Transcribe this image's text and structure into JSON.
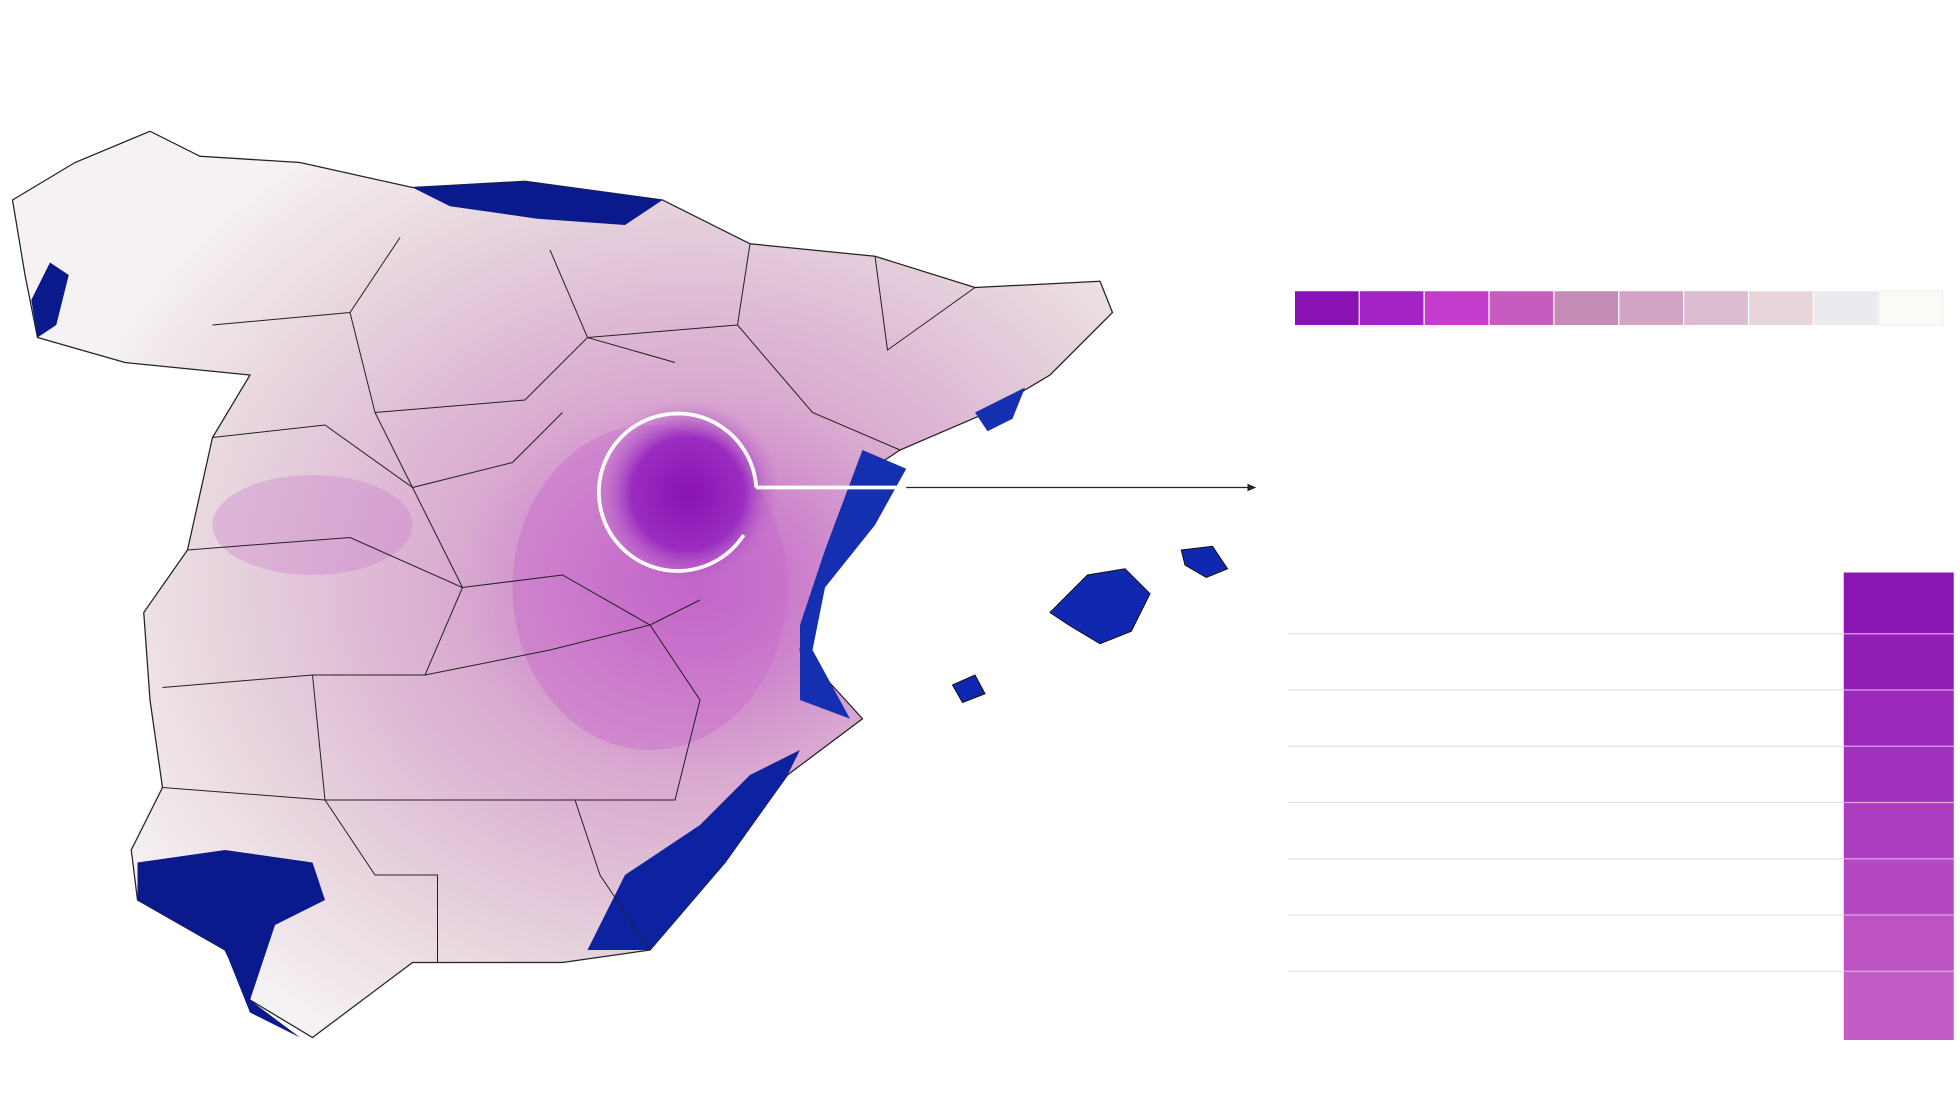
{
  "legend": {
    "colors": [
      "#8a12b2",
      "#a323c4",
      "#c43ccc",
      "#c65cbe",
      "#c58cb8",
      "#d4a4c4",
      "#dcbcd0",
      "#e6d6dc",
      "#ebebef",
      "#fbfbf7"
    ]
  },
  "bar_column": {
    "colors": [
      "#8b16b2",
      "#931eb6",
      "#9b28ba",
      "#a232bd",
      "#ab3ec0",
      "#b448c2",
      "#bc52c4",
      "#c45cc6"
    ]
  }
}
